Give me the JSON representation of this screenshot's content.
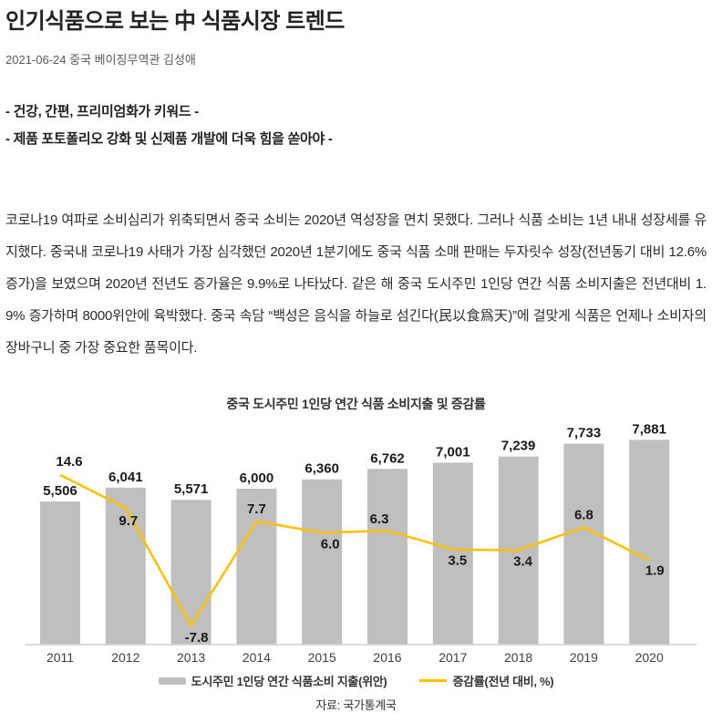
{
  "header": {
    "title": "인기식품으로 보는 中 식품시장 트렌드",
    "byline": "2021-06-24 중국 베이징무역관 김성애"
  },
  "keypoints": [
    "- 건강, 간편, 프리미엄화가 키워드 -",
    "- 제품 포토폴리오 강화 및 신제품 개발에 더욱 힘을 쏟아야 -"
  ],
  "body": {
    "paragraph": "코로나19 여파로 소비심리가 위축되면서 중국 소비는 2020년 역성장을 면치 못했다. 그러나 식품 소비는 1년 내내 성장세를 유지했다. 중국내 코로나19 사태가 가장 심각했던 2020년 1분기에도 중국 식품 소매 판매는 두자릿수 성장(전년동기 대비 12.6% 증가)을 보였으며 2020년 전년도 증가율은 9.9%로 나타났다. 같은 해 중국 도시주민 1인당 연간 식품 소비지출은 전년대비 1.9% 증가하며 8000위안에 육박했다. 중국 속담 “백성은 음식을 하늘로 섬긴다(民以食爲天)”에 걸맞게 식품은 언제나 소비자의 장바구니 중 가장 중요한 품목이다."
  },
  "chart_data": {
    "type": "bar",
    "subtype": "bar-line-combo",
    "title": "중국 도시주민 1인당 연간 식품 소비지출 및 증감률",
    "categories": [
      "2011",
      "2012",
      "2013",
      "2014",
      "2015",
      "2016",
      "2017",
      "2018",
      "2019",
      "2020"
    ],
    "series": [
      {
        "name": "도시주민 1인당 연간 식품소비 지출(위안)",
        "type": "bar",
        "color": "#bfbfbf",
        "values": [
          5506,
          6041,
          5571,
          6000,
          6360,
          6762,
          7001,
          7239,
          7733,
          7881
        ]
      },
      {
        "name": "증감률(전년 대비, %)",
        "type": "line",
        "color": "#ffc000",
        "values": [
          14.6,
          9.7,
          -7.8,
          7.7,
          6.0,
          6.3,
          3.5,
          3.4,
          6.8,
          1.9
        ]
      }
    ],
    "legend_position": "bottom",
    "grid": false,
    "data_labels": true,
    "source": "자료: 국가통계국"
  }
}
